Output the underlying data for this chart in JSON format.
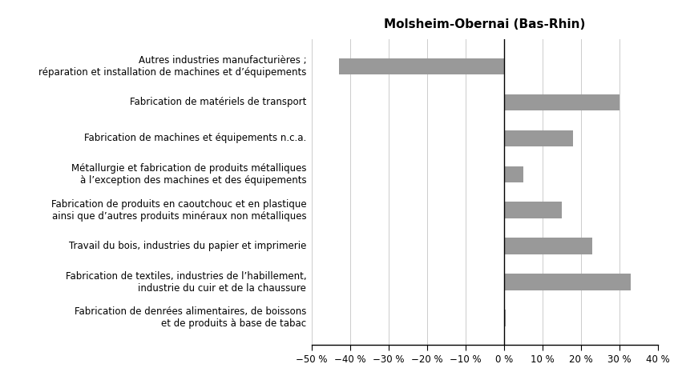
{
  "title": "Molsheim-Obernai (Bas-Rhin)",
  "categories": [
    "Autres industries manufacturières ;\nréparation et installation de machines et d’équipements",
    "Fabrication de matériels de transport",
    "Fabrication de machines et équipements n.c.a.",
    "Métallurgie et fabrication de produits métalliques\nà l’exception des machines et des équipements",
    "Fabrication de produits en caoutchouc et en plastique\nainsi que d’autres produits minéraux non métalliques",
    "Travail du bois, industries du papier et imprimerie",
    "Fabrication de textiles, industries de l’habillement,\nindustrie du cuir et de la chaussure",
    "Fabrication de denrées alimentaires, de boissons\net de produits à base de tabac"
  ],
  "values": [
    -43,
    30,
    18,
    5,
    15,
    23,
    33,
    0.5
  ],
  "bar_color": "#999999",
  "xlim": [
    -50,
    40
  ],
  "xticks": [
    -50,
    -40,
    -30,
    -20,
    -10,
    0,
    10,
    20,
    30,
    40
  ],
  "xtick_labels": [
    "−50 %",
    "−40 %",
    "−30 %",
    "−20 %",
    "−10 %",
    "0 %",
    "10 %",
    "20 %",
    "30 %",
    "40 %"
  ],
  "background_color": "#ffffff",
  "title_fontsize": 11,
  "label_fontsize": 8.5,
  "tick_fontsize": 8.5,
  "bar_height": 0.45
}
